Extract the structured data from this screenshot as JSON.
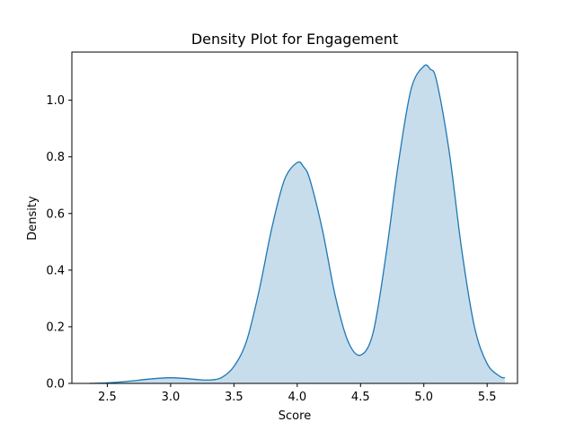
{
  "chart_data": {
    "type": "area",
    "title": "Density Plot for Engagement",
    "xlabel": "Score",
    "ylabel": "Density",
    "xlim": [
      2.22,
      5.74
    ],
    "ylim": [
      0,
      1.17
    ],
    "xticks": [
      "2.5",
      "3.0",
      "3.5",
      "4.0",
      "4.5",
      "5.0",
      "5.5"
    ],
    "yticks": [
      "0.0",
      "0.2",
      "0.4",
      "0.6",
      "0.8",
      "1.0"
    ],
    "grid": false,
    "legend": "none",
    "colors": {
      "line": "#1f77b4",
      "fill": "#1f77b4",
      "fill_opacity": 0.25,
      "axes": "#000000"
    },
    "series": [
      {
        "x": [
          2.36,
          2.5,
          2.6,
          2.7,
          2.8,
          2.9,
          3.0,
          3.1,
          3.2,
          3.3,
          3.4,
          3.5,
          3.6,
          3.7,
          3.8,
          3.9,
          4.0,
          4.05,
          4.1,
          4.2,
          4.3,
          4.4,
          4.5,
          4.6,
          4.7,
          4.8,
          4.9,
          5.0,
          5.05,
          5.1,
          5.2,
          5.3,
          5.4,
          5.5,
          5.6,
          5.64
        ],
        "y": [
          0.0,
          0.002,
          0.005,
          0.009,
          0.014,
          0.018,
          0.02,
          0.018,
          0.014,
          0.012,
          0.02,
          0.06,
          0.15,
          0.33,
          0.55,
          0.72,
          0.78,
          0.765,
          0.72,
          0.54,
          0.31,
          0.15,
          0.1,
          0.18,
          0.45,
          0.78,
          1.04,
          1.12,
          1.11,
          1.07,
          0.82,
          0.47,
          0.2,
          0.07,
          0.025,
          0.02
        ]
      }
    ]
  }
}
